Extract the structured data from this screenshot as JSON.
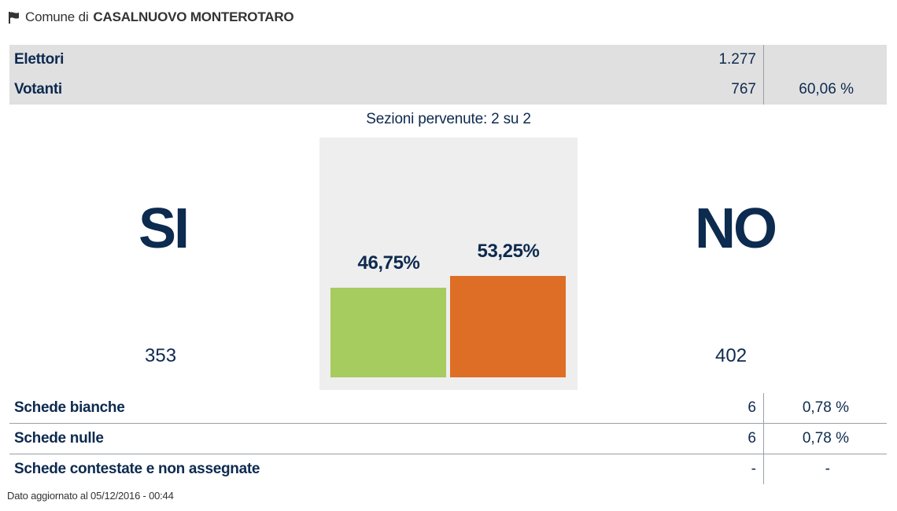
{
  "header": {
    "prefix": "Comune di",
    "name": "CASALNUOVO MONTEROTARO",
    "icon": "flag-icon"
  },
  "stats": {
    "elettori": {
      "label": "Elettori",
      "value": "1.277"
    },
    "votanti": {
      "label": "Votanti",
      "value": "767",
      "percent": "60,06 %"
    }
  },
  "sezioni": "Sezioni pervenute: 2 su 2",
  "results": {
    "si": {
      "label": "SI",
      "count": "353",
      "percent_label": "46,75%"
    },
    "no": {
      "label": "NO",
      "count": "402",
      "percent_label": "53,25%"
    }
  },
  "chart_data": {
    "type": "bar",
    "categories": [
      "SI",
      "NO"
    ],
    "values": [
      46.75,
      53.25
    ],
    "ylim": [
      0,
      100
    ],
    "colors": [
      "#a6cb5e",
      "#de6e25"
    ]
  },
  "schede": [
    {
      "label": "Schede bianche",
      "value": "6",
      "percent": "0,78 %"
    },
    {
      "label": "Schede nulle",
      "value": "6",
      "percent": "0,78 %"
    },
    {
      "label": "Schede contestate e non assegnate",
      "value": "-",
      "percent": "-"
    }
  ],
  "footer": "Dato aggiornato al 05/12/2016 - 00:44"
}
